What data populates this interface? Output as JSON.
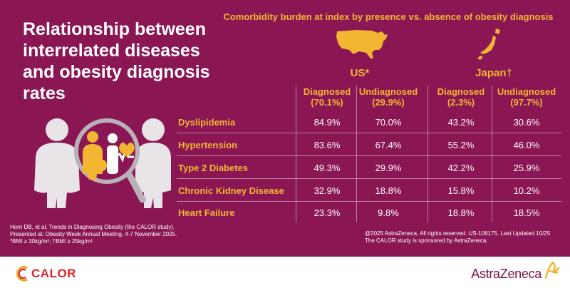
{
  "title": "Relationship between interrelated diseases and obesity diagnosis rates",
  "subtitle": "Comorbidity burden at index by presence vs. absence of obesity diagnosis",
  "countries": [
    {
      "label": "US*",
      "icon": "usa-map-icon"
    },
    {
      "label": "Japan†",
      "icon": "japan-map-icon"
    }
  ],
  "columns": [
    {
      "label": "Diagnosed",
      "pct": "(70.1%)"
    },
    {
      "label": "Undiagnosed",
      "pct": "(29.9%)"
    },
    {
      "label": "Diagnosed",
      "pct": "(2.3%)"
    },
    {
      "label": "Undiagnosed",
      "pct": "(97.7%)"
    }
  ],
  "rows": [
    {
      "label": "Dyslipidemia",
      "values": [
        "84.9%",
        "70.0%",
        "43.2%",
        "30.6%"
      ]
    },
    {
      "label": "Hypertension",
      "values": [
        "83.6%",
        "67.4%",
        "55.2%",
        "46.0%"
      ]
    },
    {
      "label": "Type 2 Diabetes",
      "values": [
        "49.3%",
        "29.9%",
        "42.2%",
        "25.9%"
      ]
    },
    {
      "label": "Chronic Kidney Disease",
      "values": [
        "32.9%",
        "18.8%",
        "15.8%",
        "10.2%"
      ]
    },
    {
      "label": "Heart Failure",
      "values": [
        "23.3%",
        "9.8%",
        "18.8%",
        "18.5%"
      ]
    }
  ],
  "footnote_left": [
    "Horn DB, et al. Trends in Diagnosing Obesity (the CALOR study).",
    "Presented at: Obesity Week Annual Meeting, 4-7 November 2025.",
    "*BMI ≥ 30kg/m²; †BMI ≥ 25kg/m²"
  ],
  "footnote_right": [
    "@2025 AstraZeneca. All rights reserved. US-106175. Last Updated 10/25",
    "The CALOR study is sponsored by AstraZeneca."
  ],
  "logos": {
    "calor": "CALOR",
    "astrazeneca": "AstraZeneca"
  },
  "colors": {
    "background": "#8b1654",
    "accent": "#f2b632",
    "text": "#ffffff",
    "brand_red": "#d9262b"
  }
}
